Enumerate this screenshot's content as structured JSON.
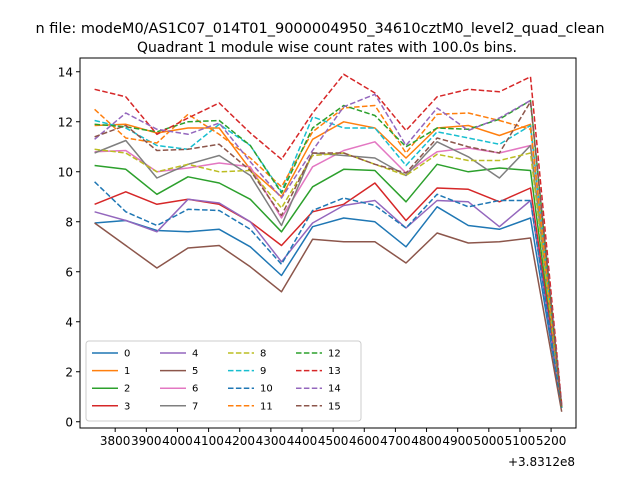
{
  "suptitle": "n file: modeM0/AS1C07_014T01_9000004950_34610cztM0_level2_quad_clean",
  "chart_data": {
    "type": "line",
    "title": "Quadrant 1 module wise count rates with 100.0s bins.",
    "xlabel": "",
    "ylabel": "",
    "x_offset_label": "+3.8312e8",
    "x": [
      3734,
      3834,
      3934,
      4034,
      4134,
      4234,
      4334,
      4434,
      4534,
      4634,
      4734,
      4834,
      4934,
      5034,
      5134,
      5234
    ],
    "xlim": [
      3687,
      5280
    ],
    "ylim": [
      -0.25,
      14.55
    ],
    "xticks": [
      3800,
      3900,
      4000,
      4100,
      4200,
      4300,
      4400,
      4500,
      4600,
      4700,
      4800,
      4900,
      5000,
      5100,
      5200
    ],
    "yticks": [
      0,
      2,
      4,
      6,
      8,
      10,
      12,
      14
    ],
    "grid": false,
    "legend_placement": "lower-left",
    "legend_columns": 4,
    "series": [
      {
        "name": "0",
        "color": "#1f77b4",
        "dash": "solid",
        "values": [
          7.95,
          8.05,
          7.65,
          7.6,
          7.7,
          7.0,
          5.85,
          7.8,
          8.15,
          8.0,
          7.0,
          8.6,
          7.85,
          7.7,
          8.15,
          0.55
        ]
      },
      {
        "name": "1",
        "color": "#ff7f0e",
        "dash": "solid",
        "values": [
          11.85,
          11.9,
          11.55,
          11.75,
          11.75,
          10.1,
          9.0,
          11.3,
          12.0,
          11.75,
          10.55,
          11.75,
          11.85,
          11.45,
          11.9,
          0.6
        ]
      },
      {
        "name": "2",
        "color": "#2ca02c",
        "dash": "solid",
        "values": [
          10.25,
          10.1,
          9.1,
          9.8,
          9.55,
          8.9,
          7.6,
          9.4,
          10.1,
          10.05,
          8.8,
          10.3,
          10.0,
          10.15,
          10.05,
          0.55
        ]
      },
      {
        "name": "3",
        "color": "#d62728",
        "dash": "solid",
        "values": [
          8.7,
          9.2,
          8.7,
          8.9,
          8.7,
          8.0,
          7.05,
          8.4,
          8.7,
          9.55,
          8.05,
          9.35,
          9.3,
          8.8,
          9.35,
          0.6
        ]
      },
      {
        "name": "4",
        "color": "#9467bd",
        "dash": "solid",
        "values": [
          8.4,
          8.05,
          7.6,
          8.9,
          8.75,
          8.0,
          6.4,
          7.95,
          8.65,
          8.85,
          7.75,
          8.85,
          8.8,
          7.8,
          8.85,
          0.55
        ]
      },
      {
        "name": "5",
        "color": "#8c564b",
        "dash": "solid",
        "values": [
          7.95,
          7.05,
          6.15,
          6.95,
          7.05,
          6.2,
          5.2,
          7.3,
          7.2,
          7.2,
          6.35,
          7.55,
          7.15,
          7.2,
          7.35,
          0.4
        ]
      },
      {
        "name": "6",
        "color": "#e377c2",
        "dash": "solid",
        "values": [
          10.8,
          10.85,
          10.0,
          10.15,
          10.35,
          10.2,
          8.15,
          10.2,
          10.85,
          11.2,
          9.95,
          10.8,
          10.95,
          10.75,
          11.05,
          0.6
        ]
      },
      {
        "name": "7",
        "color": "#7f7f7f",
        "dash": "solid",
        "values": [
          10.75,
          11.25,
          9.75,
          10.3,
          10.65,
          9.85,
          7.85,
          10.75,
          10.65,
          10.55,
          9.85,
          11.2,
          10.6,
          9.75,
          11.05,
          0.55
        ]
      },
      {
        "name": "8",
        "color": "#bcbd22",
        "dash": "dashed",
        "values": [
          10.9,
          10.75,
          10.0,
          10.3,
          10.0,
          10.05,
          8.55,
          10.65,
          10.75,
          10.3,
          9.85,
          10.7,
          10.45,
          10.45,
          10.75,
          0.55
        ]
      },
      {
        "name": "9",
        "color": "#17becf",
        "dash": "dashed",
        "values": [
          12.05,
          11.75,
          11.05,
          10.9,
          11.9,
          11.05,
          9.2,
          12.2,
          11.75,
          11.75,
          10.25,
          11.6,
          11.35,
          11.1,
          11.85,
          0.6
        ]
      },
      {
        "name": "10",
        "color": "#1f77b4",
        "dash": "dashed",
        "values": [
          9.6,
          8.4,
          7.85,
          8.5,
          8.45,
          7.7,
          6.3,
          8.45,
          8.95,
          8.65,
          7.75,
          9.1,
          8.6,
          8.85,
          8.85,
          0.55
        ]
      },
      {
        "name": "11",
        "color": "#ff7f0e",
        "dash": "dashed",
        "values": [
          12.5,
          11.35,
          11.15,
          12.3,
          11.5,
          10.55,
          9.4,
          11.6,
          12.55,
          12.65,
          10.75,
          12.3,
          12.35,
          12.05,
          11.7,
          0.6
        ]
      },
      {
        "name": "12",
        "color": "#2ca02c",
        "dash": "dashed",
        "values": [
          11.9,
          11.8,
          11.6,
          12.0,
          12.05,
          11.05,
          9.15,
          11.75,
          12.65,
          12.25,
          11.0,
          11.75,
          11.7,
          12.1,
          12.85,
          0.6
        ]
      },
      {
        "name": "13",
        "color": "#d62728",
        "dash": "dashed",
        "values": [
          13.3,
          13.0,
          11.5,
          12.15,
          12.75,
          11.55,
          10.5,
          12.35,
          13.9,
          13.15,
          11.65,
          13.0,
          13.3,
          13.2,
          13.8,
          0.7
        ]
      },
      {
        "name": "14",
        "color": "#9467bd",
        "dash": "dashed",
        "values": [
          11.3,
          12.35,
          11.7,
          11.5,
          11.95,
          10.4,
          8.95,
          10.85,
          12.6,
          13.1,
          11.05,
          12.55,
          11.65,
          12.15,
          12.85,
          0.65
        ]
      },
      {
        "name": "15",
        "color": "#8c564b",
        "dash": "dashed",
        "values": [
          11.4,
          11.85,
          10.85,
          10.9,
          11.1,
          10.05,
          8.25,
          10.75,
          10.75,
          10.3,
          9.95,
          11.35,
          11.0,
          10.75,
          12.8,
          0.55
        ]
      }
    ]
  }
}
